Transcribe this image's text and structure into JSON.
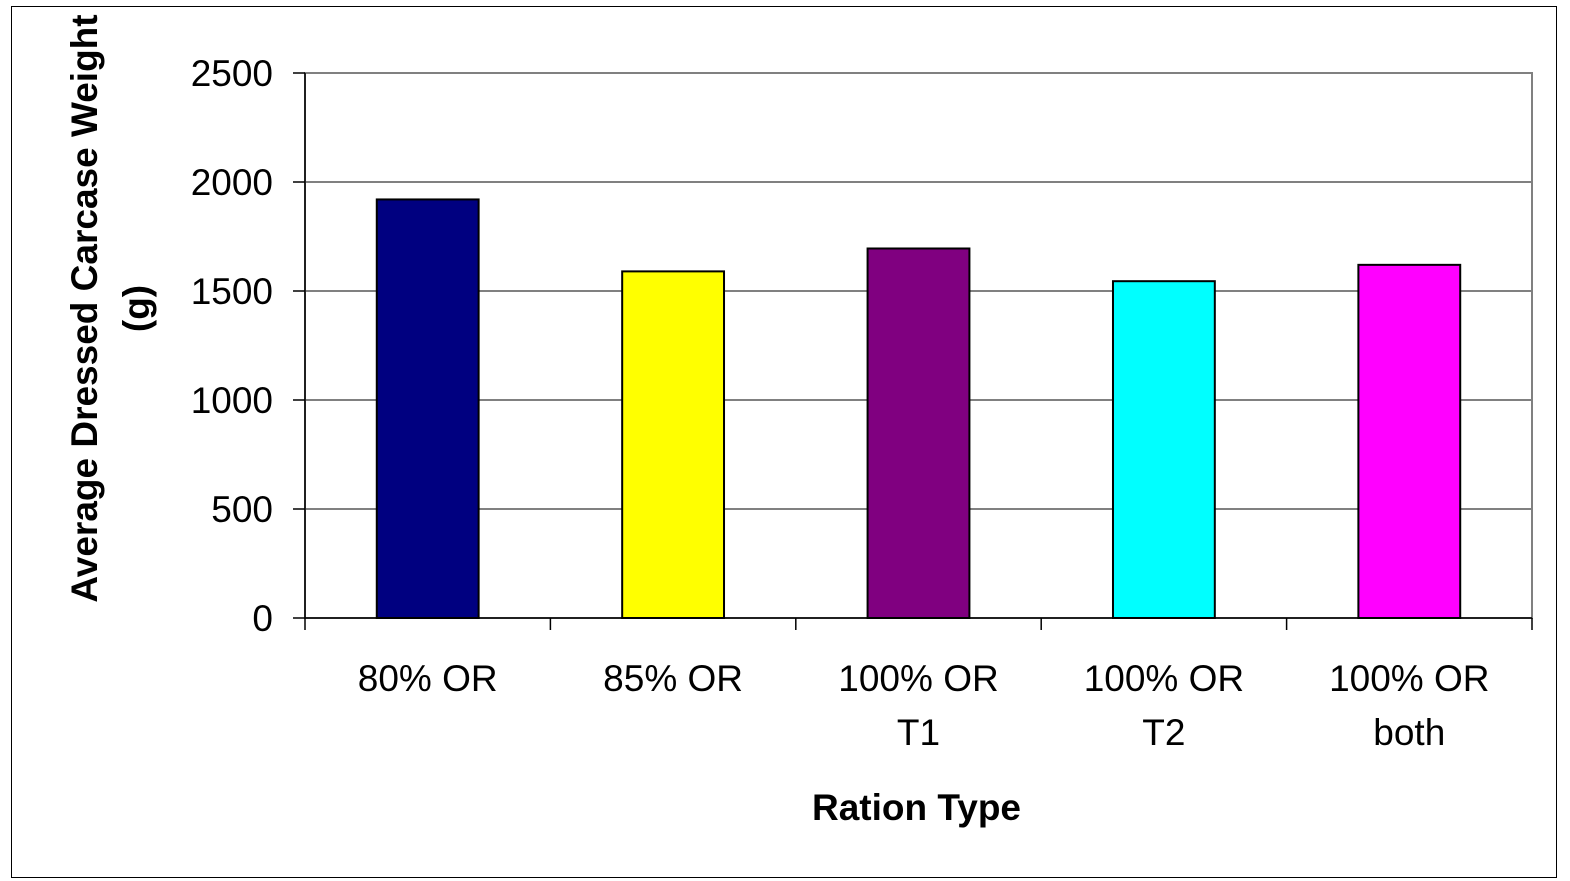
{
  "chart_data": {
    "type": "bar",
    "title": "",
    "xlabel": "Ration Type",
    "ylabel": "Average Dressed Carcase Weight (g)",
    "ylabel_lines": [
      "Average Dressed Carcase Weight",
      "(g)"
    ],
    "categories": [
      "80% OR",
      "85% OR",
      "100% OR T1",
      "100% OR T2",
      "100% OR both"
    ],
    "category_lines": [
      [
        "80% OR"
      ],
      [
        "85% OR"
      ],
      [
        "100% OR",
        "T1"
      ],
      [
        "100% OR",
        "T2"
      ],
      [
        "100% OR",
        "both"
      ]
    ],
    "values": [
      1920,
      1590,
      1695,
      1545,
      1620
    ],
    "colors": [
      "#000080",
      "#FFFF00",
      "#800080",
      "#00FFFF",
      "#FF00FF"
    ],
    "ylim": [
      0,
      2500
    ],
    "yticks": [
      0,
      500,
      1000,
      1500,
      2000,
      2500
    ],
    "ytick_labels": [
      "0",
      "500",
      "1000",
      "1500",
      "2000",
      "2500"
    ],
    "grid": true,
    "legend": "none"
  }
}
